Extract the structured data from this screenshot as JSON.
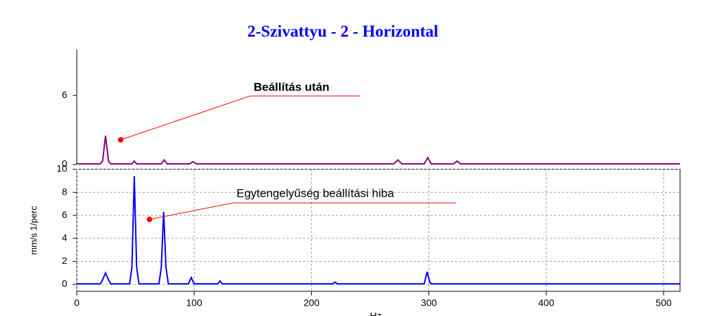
{
  "chart_data": [
    {
      "type": "line",
      "title": "2-Szivattyu - 2 - Horizontal",
      "annotation": "Beállítás után",
      "x": [
        0,
        2,
        20,
        22,
        24.5,
        27,
        29,
        47,
        49,
        51,
        72,
        74.5,
        77,
        96,
        99,
        102,
        270,
        273.5,
        277,
        296,
        299,
        302,
        321,
        324,
        327,
        514
      ],
      "series": [
        {
          "color": "#800080",
          "values": [
            0.1,
            0.05,
            0.05,
            0.3,
            2.5,
            0.3,
            0.05,
            0.05,
            0.3,
            0.05,
            0.05,
            0.4,
            0.05,
            0.05,
            0.25,
            0.05,
            0.05,
            0.4,
            0.05,
            0.05,
            0.6,
            0.05,
            0.05,
            0.3,
            0.05,
            0.05
          ]
        }
      ],
      "xlim": [
        0,
        514
      ],
      "ylim": [
        0,
        10
      ],
      "yticks": [
        0,
        6
      ],
      "grid": false
    },
    {
      "type": "line",
      "y_label": "mm/s 1/perc",
      "x_label": "Hz",
      "annotation": "Egytengelyűség beállítási hiba",
      "x": [
        0,
        20,
        22,
        24.5,
        27,
        29,
        45,
        47,
        49,
        51,
        53,
        70,
        72,
        74,
        76,
        78,
        95,
        97.5,
        100,
        120,
        122,
        124,
        140,
        218,
        220,
        222,
        296,
        298.5,
        301,
        303,
        514
      ],
      "series": [
        {
          "color": "#0000ff",
          "values": [
            0.05,
            0.05,
            0.4,
            1.0,
            0.4,
            0.05,
            0.05,
            1.5,
            9.4,
            1.5,
            0.05,
            0.05,
            1.5,
            6.3,
            1.5,
            0.05,
            0.05,
            0.6,
            0.05,
            0.05,
            0.3,
            0.05,
            0.05,
            0.05,
            0.2,
            0.05,
            0.05,
            1.1,
            0.1,
            0.05,
            0.05
          ]
        }
      ],
      "xlim": [
        0,
        514
      ],
      "ylim": [
        -0.6,
        10
      ],
      "yticks": [
        0,
        2,
        4,
        6,
        8,
        10
      ],
      "xticks": [
        0,
        100,
        200,
        300,
        400,
        500
      ],
      "grid": true
    }
  ]
}
